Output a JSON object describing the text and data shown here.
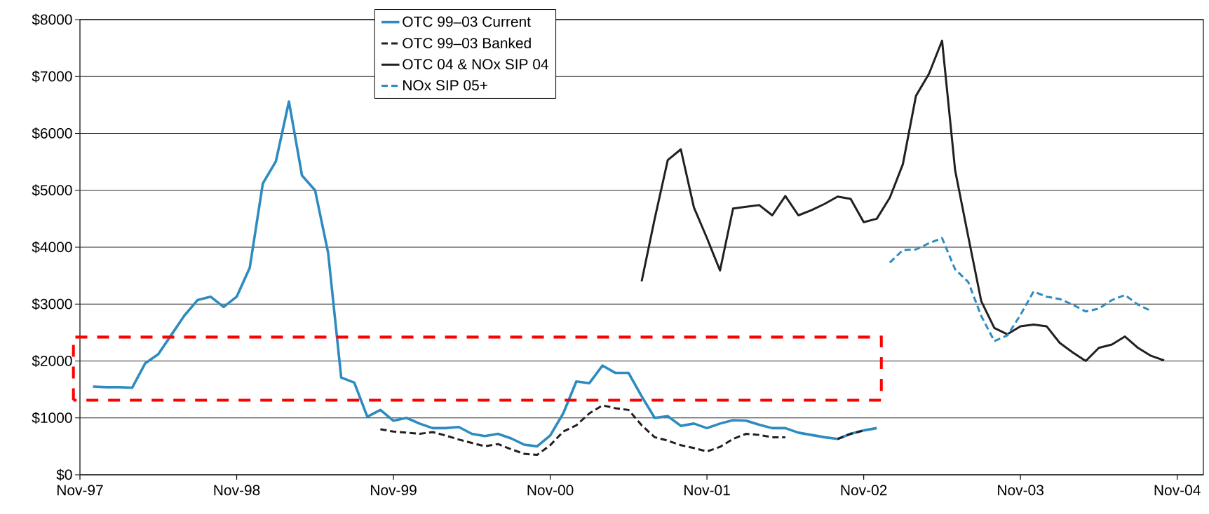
{
  "chart_data": {
    "type": "line",
    "xlim": [
      "1997-11",
      "2005-01"
    ],
    "ylim": [
      0,
      8000
    ],
    "xticks": [
      {
        "value": "1997-11",
        "label": "Nov-97"
      },
      {
        "value": "1998-11",
        "label": "Nov-98"
      },
      {
        "value": "1999-11",
        "label": "Nov-99"
      },
      {
        "value": "2000-11",
        "label": "Nov-00"
      },
      {
        "value": "2001-11",
        "label": "Nov-01"
      },
      {
        "value": "2002-11",
        "label": "Nov-02"
      },
      {
        "value": "2003-11",
        "label": "Nov-03"
      },
      {
        "value": "2004-11",
        "label": "Nov-04"
      }
    ],
    "yticks": [
      {
        "value": 0,
        "label": "$0"
      },
      {
        "value": 1000,
        "label": "$1000"
      },
      {
        "value": 2000,
        "label": "$2000"
      },
      {
        "value": 3000,
        "label": "$3000"
      },
      {
        "value": 4000,
        "label": "$4000"
      },
      {
        "value": 5000,
        "label": "$5000"
      },
      {
        "value": 6000,
        "label": "$6000"
      },
      {
        "value": 7000,
        "label": "$7000"
      },
      {
        "value": 8000,
        "label": "$8000"
      }
    ],
    "grid": "y",
    "legend": "top",
    "series": [
      {
        "name": "OTC 99–03 Current",
        "color": "#2e8bc0",
        "line_style": "solid",
        "x": [
          "1997-12",
          "1998-01",
          "1998-02",
          "1998-03",
          "1998-04",
          "1998-05",
          "1998-06",
          "1998-07",
          "1998-08",
          "1998-09",
          "1998-10",
          "1998-11",
          "1998-12",
          "1999-01",
          "1999-02",
          "1999-03",
          "1999-04",
          "1999-05",
          "1999-06",
          "1999-07",
          "1999-08",
          "1999-09",
          "1999-10",
          "1999-11",
          "1999-12",
          "2000-01",
          "2000-02",
          "2000-03",
          "2000-04",
          "2000-05",
          "2000-06",
          "2000-07",
          "2000-08",
          "2000-09",
          "2000-10",
          "2000-11",
          "2000-12",
          "2001-01",
          "2001-02",
          "2001-03",
          "2001-04",
          "2001-05",
          "2001-06",
          "2001-07",
          "2001-08",
          "2001-09",
          "2001-10",
          "2001-11",
          "2001-12",
          "2002-01",
          "2002-02",
          "2002-03",
          "2002-04",
          "2002-05",
          "2002-06",
          "2002-07",
          "2002-08",
          "2002-09",
          "2002-10",
          "2002-11",
          "2002-12"
        ],
        "values": [
          1550,
          1540,
          1540,
          1530,
          1960,
          2120,
          2460,
          2800,
          3070,
          3130,
          2950,
          3130,
          3640,
          5120,
          5510,
          6560,
          5260,
          5000,
          3900,
          1710,
          1620,
          1020,
          1140,
          950,
          1000,
          900,
          820,
          820,
          840,
          720,
          680,
          720,
          640,
          530,
          500,
          690,
          1080,
          1640,
          1610,
          1920,
          1790,
          1790,
          1380,
          1000,
          1030,
          860,
          900,
          820,
          900,
          960,
          950,
          880,
          820,
          820,
          740,
          700,
          660,
          630,
          720,
          780,
          820
        ]
      },
      {
        "name": "OTC 99–03 Banked",
        "color": "#231f20",
        "line_style": "dashed",
        "x": [
          "1999-10",
          "1999-11",
          "1999-12",
          "2000-01",
          "2000-02",
          "2000-03",
          "2000-04",
          "2000-05",
          "2000-06",
          "2000-07",
          "2000-08",
          "2000-09",
          "2000-10",
          "2000-11",
          "2000-12",
          "2001-01",
          "2001-02",
          "2001-03",
          "2001-04",
          "2001-05",
          "2001-06",
          "2001-07",
          "2001-08",
          "2001-09",
          "2001-10",
          "2001-11",
          "2001-12",
          "2002-01",
          "2002-02",
          "2002-03",
          "2002-04",
          "2002-05",
          "2002-06",
          "2002-07",
          "2002-08",
          "2002-09",
          "2002-10",
          "2002-11"
        ],
        "values": [
          800,
          760,
          740,
          720,
          750,
          690,
          620,
          560,
          500,
          540,
          450,
          370,
          350,
          520,
          760,
          870,
          1080,
          1220,
          1170,
          1140,
          870,
          660,
          600,
          520,
          470,
          410,
          490,
          630,
          720,
          700,
          660,
          660,
          null,
          null,
          null,
          630,
          720,
          780
        ]
      },
      {
        "name": "OTC 04 & NOx SIP 04",
        "color": "#231f20",
        "line_style": "solid",
        "x": [
          "2001-06",
          "2001-07",
          "2001-08",
          "2001-09",
          "2001-10",
          "2001-11",
          "2001-12",
          "2002-01",
          "2002-02",
          "2002-03",
          "2002-04",
          "2002-05",
          "2002-06",
          "2002-07",
          "2002-08",
          "2002-09",
          "2002-10",
          "2002-11",
          "2002-12",
          "2003-01",
          "2003-02",
          "2003-03",
          "2003-04",
          "2003-05",
          "2003-06",
          "2003-07",
          "2003-08",
          "2003-09",
          "2003-10",
          "2003-11",
          "2003-12",
          "2004-01",
          "2004-02",
          "2004-03",
          "2004-04",
          "2004-05",
          "2004-06",
          "2004-07",
          "2004-08",
          "2004-09",
          "2004-10"
        ],
        "values": [
          3400,
          4500,
          5530,
          5720,
          4700,
          4160,
          3590,
          4680,
          4710,
          4740,
          4560,
          4900,
          4560,
          4650,
          4760,
          4890,
          4850,
          4440,
          4500,
          4870,
          5460,
          6660,
          7050,
          7630,
          5350,
          4190,
          3050,
          2580,
          2470,
          2610,
          2640,
          2610,
          2320,
          2150,
          2000,
          2230,
          2290,
          2430,
          2230,
          2090,
          2010
        ]
      },
      {
        "name": "NOx SIP 05+",
        "color": "#2e8bc0",
        "line_style": "dashed",
        "x": [
          "2003-01",
          "2003-02",
          "2003-03",
          "2003-04",
          "2003-05",
          "2003-06",
          "2003-07",
          "2003-08",
          "2003-09",
          "2003-10",
          "2003-11",
          "2003-12",
          "2004-01",
          "2004-02",
          "2004-03",
          "2004-04",
          "2004-05",
          "2004-06",
          "2004-07",
          "2004-08",
          "2004-09"
        ],
        "values": [
          3730,
          3950,
          3960,
          4070,
          4160,
          3610,
          3390,
          2790,
          2350,
          2450,
          2810,
          3220,
          3130,
          3090,
          2990,
          2870,
          2920,
          3070,
          3160,
          2990,
          2880
        ]
      }
    ]
  }
}
